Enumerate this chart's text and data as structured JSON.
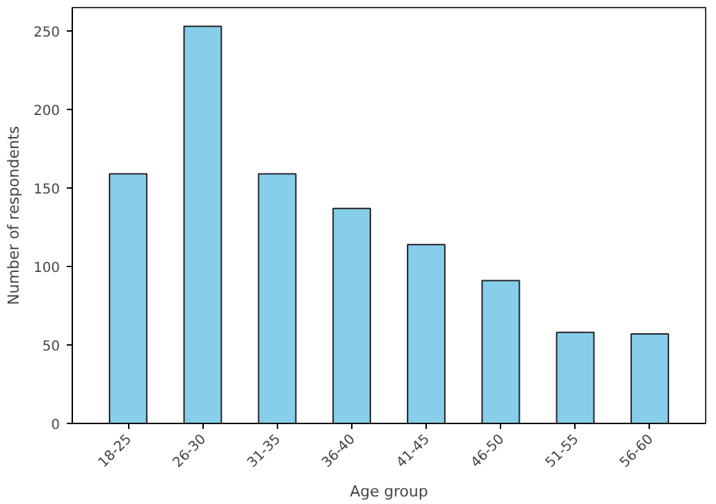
{
  "chart_data": {
    "type": "bar",
    "xlabel": "Age group",
    "ylabel": "Number of respondents",
    "categories": [
      "18-25",
      "26-30",
      "31-35",
      "36-40",
      "41-45",
      "46-50",
      "51-55",
      "56-60"
    ],
    "values": [
      159,
      253,
      159,
      137,
      114,
      91,
      58,
      57
    ],
    "color": "#87ceeb",
    "ylim": [
      0,
      265
    ],
    "yticks": [
      0,
      50,
      100,
      150,
      200,
      250
    ],
    "grid": false
  }
}
